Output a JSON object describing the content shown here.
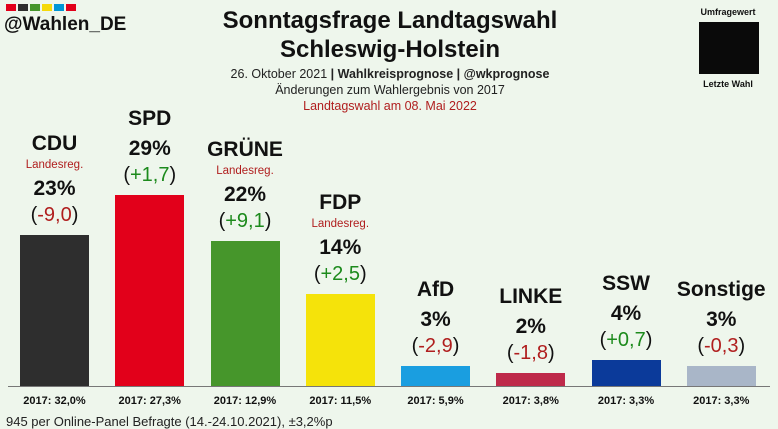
{
  "header": {
    "handle": "@Wahlen_DE",
    "title_line1": "Sonntagsfrage Landtagswahl",
    "title_line2": "Schleswig-Holstein",
    "sub_date": "26. Oktober 2021",
    "sub_source": "Wahlkreisprognose",
    "sub_handle": "@wkprognose",
    "sub_changes": "Änderungen zum Wahlergebnis von 2017",
    "sub_election": "Landtagswahl am 08. Mai 2022",
    "flag_colors": [
      "#e2001a",
      "#2e2e2e",
      "#46962b",
      "#f5d90a",
      "#0096d6",
      "#e2001a"
    ]
  },
  "legend": {
    "top_label": "Umfragewert",
    "bottom_label": "Letzte Wahl",
    "box_color": "#0a0a0a"
  },
  "chart_data": {
    "type": "bar",
    "title": "Sonntagsfrage Landtagswahl Schleswig-Holstein",
    "categories": [
      "CDU",
      "SPD",
      "GRÜNE",
      "FDP",
      "AfD",
      "LINKE",
      "SSW",
      "Sonstige"
    ],
    "values": [
      23,
      29,
      22,
      14,
      3,
      2,
      4,
      3
    ],
    "value_labels": [
      "23%",
      "29%",
      "22%",
      "14%",
      "3%",
      "2%",
      "4%",
      "3%"
    ],
    "changes": [
      -9.0,
      1.7,
      9.1,
      2.5,
      -2.9,
      -1.8,
      0.7,
      -0.3
    ],
    "change_labels": [
      "-9,0",
      "+1,7",
      "+9,1",
      "+2,5",
      "-2,9",
      "-1,8",
      "+0,7",
      "-0,3"
    ],
    "notes": [
      "Landesreg.",
      "",
      "Landesreg.",
      "Landesreg.",
      "",
      "",
      "",
      ""
    ],
    "previous_labels": [
      "2017: 32,0%",
      "2017: 27,3%",
      "2017: 12,9%",
      "2017: 11,5%",
      "2017: 5,9%",
      "2017: 3,8%",
      "2017: 3,3%",
      "2017: 3,3%"
    ],
    "colors": [
      "#2e2e2e",
      "#e2001a",
      "#46962b",
      "#f5e30a",
      "#1a9ee0",
      "#be2a4a",
      "#0b3a9a",
      "#a9b6c8"
    ],
    "change_positive_color": "#1c8a1c",
    "change_negative_color": "#b01e1e",
    "ylim": [
      0,
      29
    ],
    "legend": "top-right"
  },
  "footer": {
    "note": "945 per Online-Panel Befragte (14.-24.10.2021), ±3,2%p"
  }
}
